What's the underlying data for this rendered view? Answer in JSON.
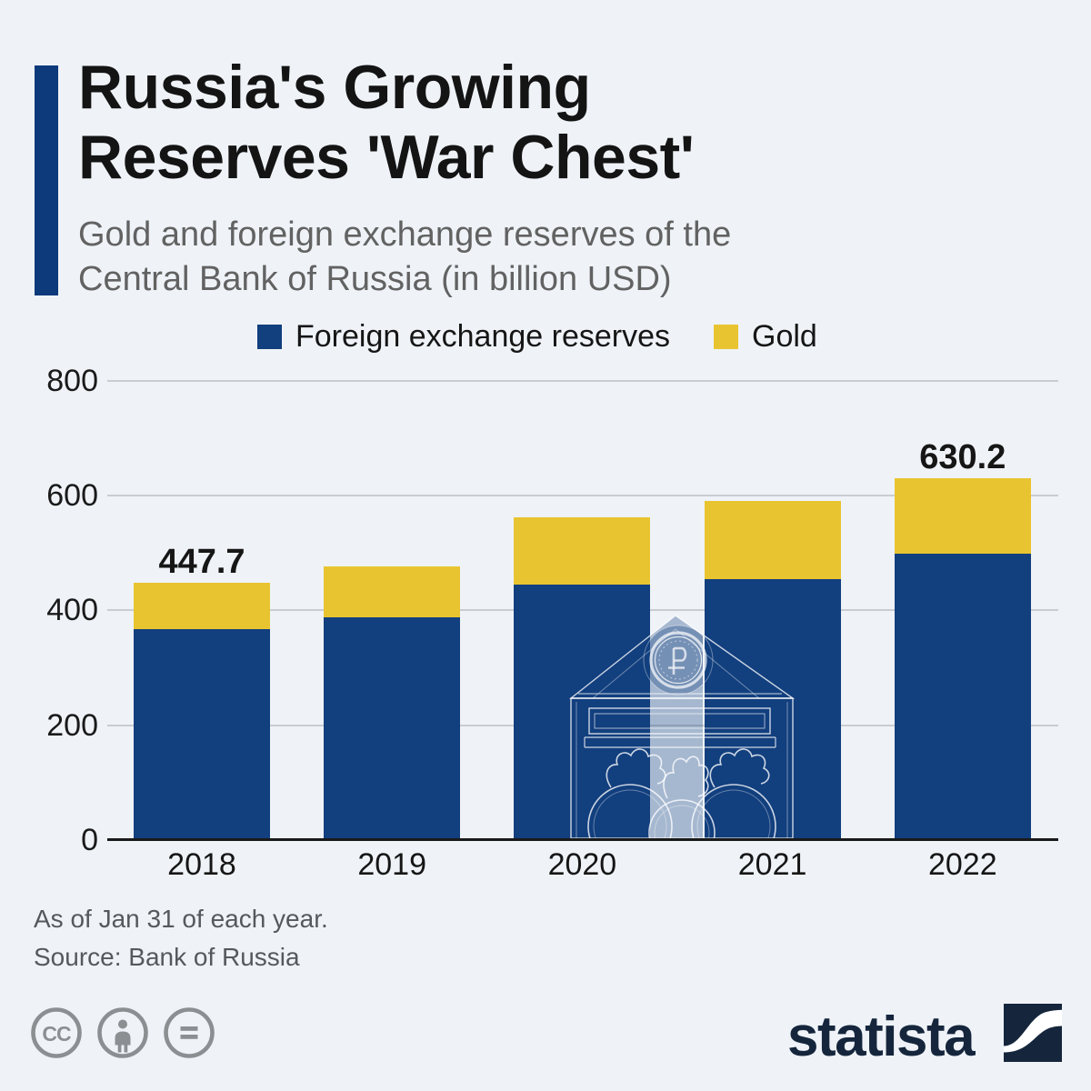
{
  "header": {
    "accent_color": "#0d3a7b",
    "title_line1": "Russia's Growing",
    "title_line2": "Reserves 'War Chest'",
    "subtitle_line1": "Gold and foreign exchange reserves of the",
    "subtitle_line2": "Central Bank of Russia (in billion USD)"
  },
  "legend": [
    {
      "label": "Foreign exchange reserves",
      "color": "#123f7e"
    },
    {
      "label": "Gold",
      "color": "#e9c431"
    }
  ],
  "chart_data": {
    "type": "bar",
    "stacked": true,
    "title": "Gold and foreign exchange reserves of the Central Bank of Russia (in billion USD)",
    "categories": [
      "2018",
      "2019",
      "2020",
      "2021",
      "2022"
    ],
    "series": [
      {
        "name": "Foreign exchange reserves",
        "color": "#123f7e",
        "values": [
          368.0,
          388.2,
          445.3,
          455.2,
          498.2
        ]
      },
      {
        "name": "Gold",
        "color": "#e9c431",
        "values": [
          79.7,
          87.7,
          117.1,
          135.5,
          132.0
        ]
      }
    ],
    "totals": [
      447.7,
      475.9,
      562.4,
      590.7,
      630.2
    ],
    "bar_total_labels": {
      "2018": "447.7",
      "2022": "630.2"
    },
    "y_axis": {
      "ticks": [
        800,
        600,
        400,
        200,
        0
      ],
      "min": 0,
      "max": 800,
      "gridlines": true
    },
    "legend_position": "top",
    "background_color": "#eff3f8",
    "gridline_color": "#c9cdd3",
    "axis_line_color": "#1a1a1a"
  },
  "watermark": {
    "description": "bank building with ruble coin",
    "fill_color": "rgba(19,63,126,0.33)",
    "line_color": "rgba(255,255,255,0.78)"
  },
  "footer": {
    "note": "As of Jan 31 of each year.",
    "source": "Source: Bank of Russia"
  },
  "branding": {
    "wordmark": "statista",
    "logo_color": "#15263c",
    "license_icon_color": "#8c8f92",
    "license_icons": [
      "cc-icon",
      "attribution-person-icon",
      "equals-icon"
    ]
  }
}
